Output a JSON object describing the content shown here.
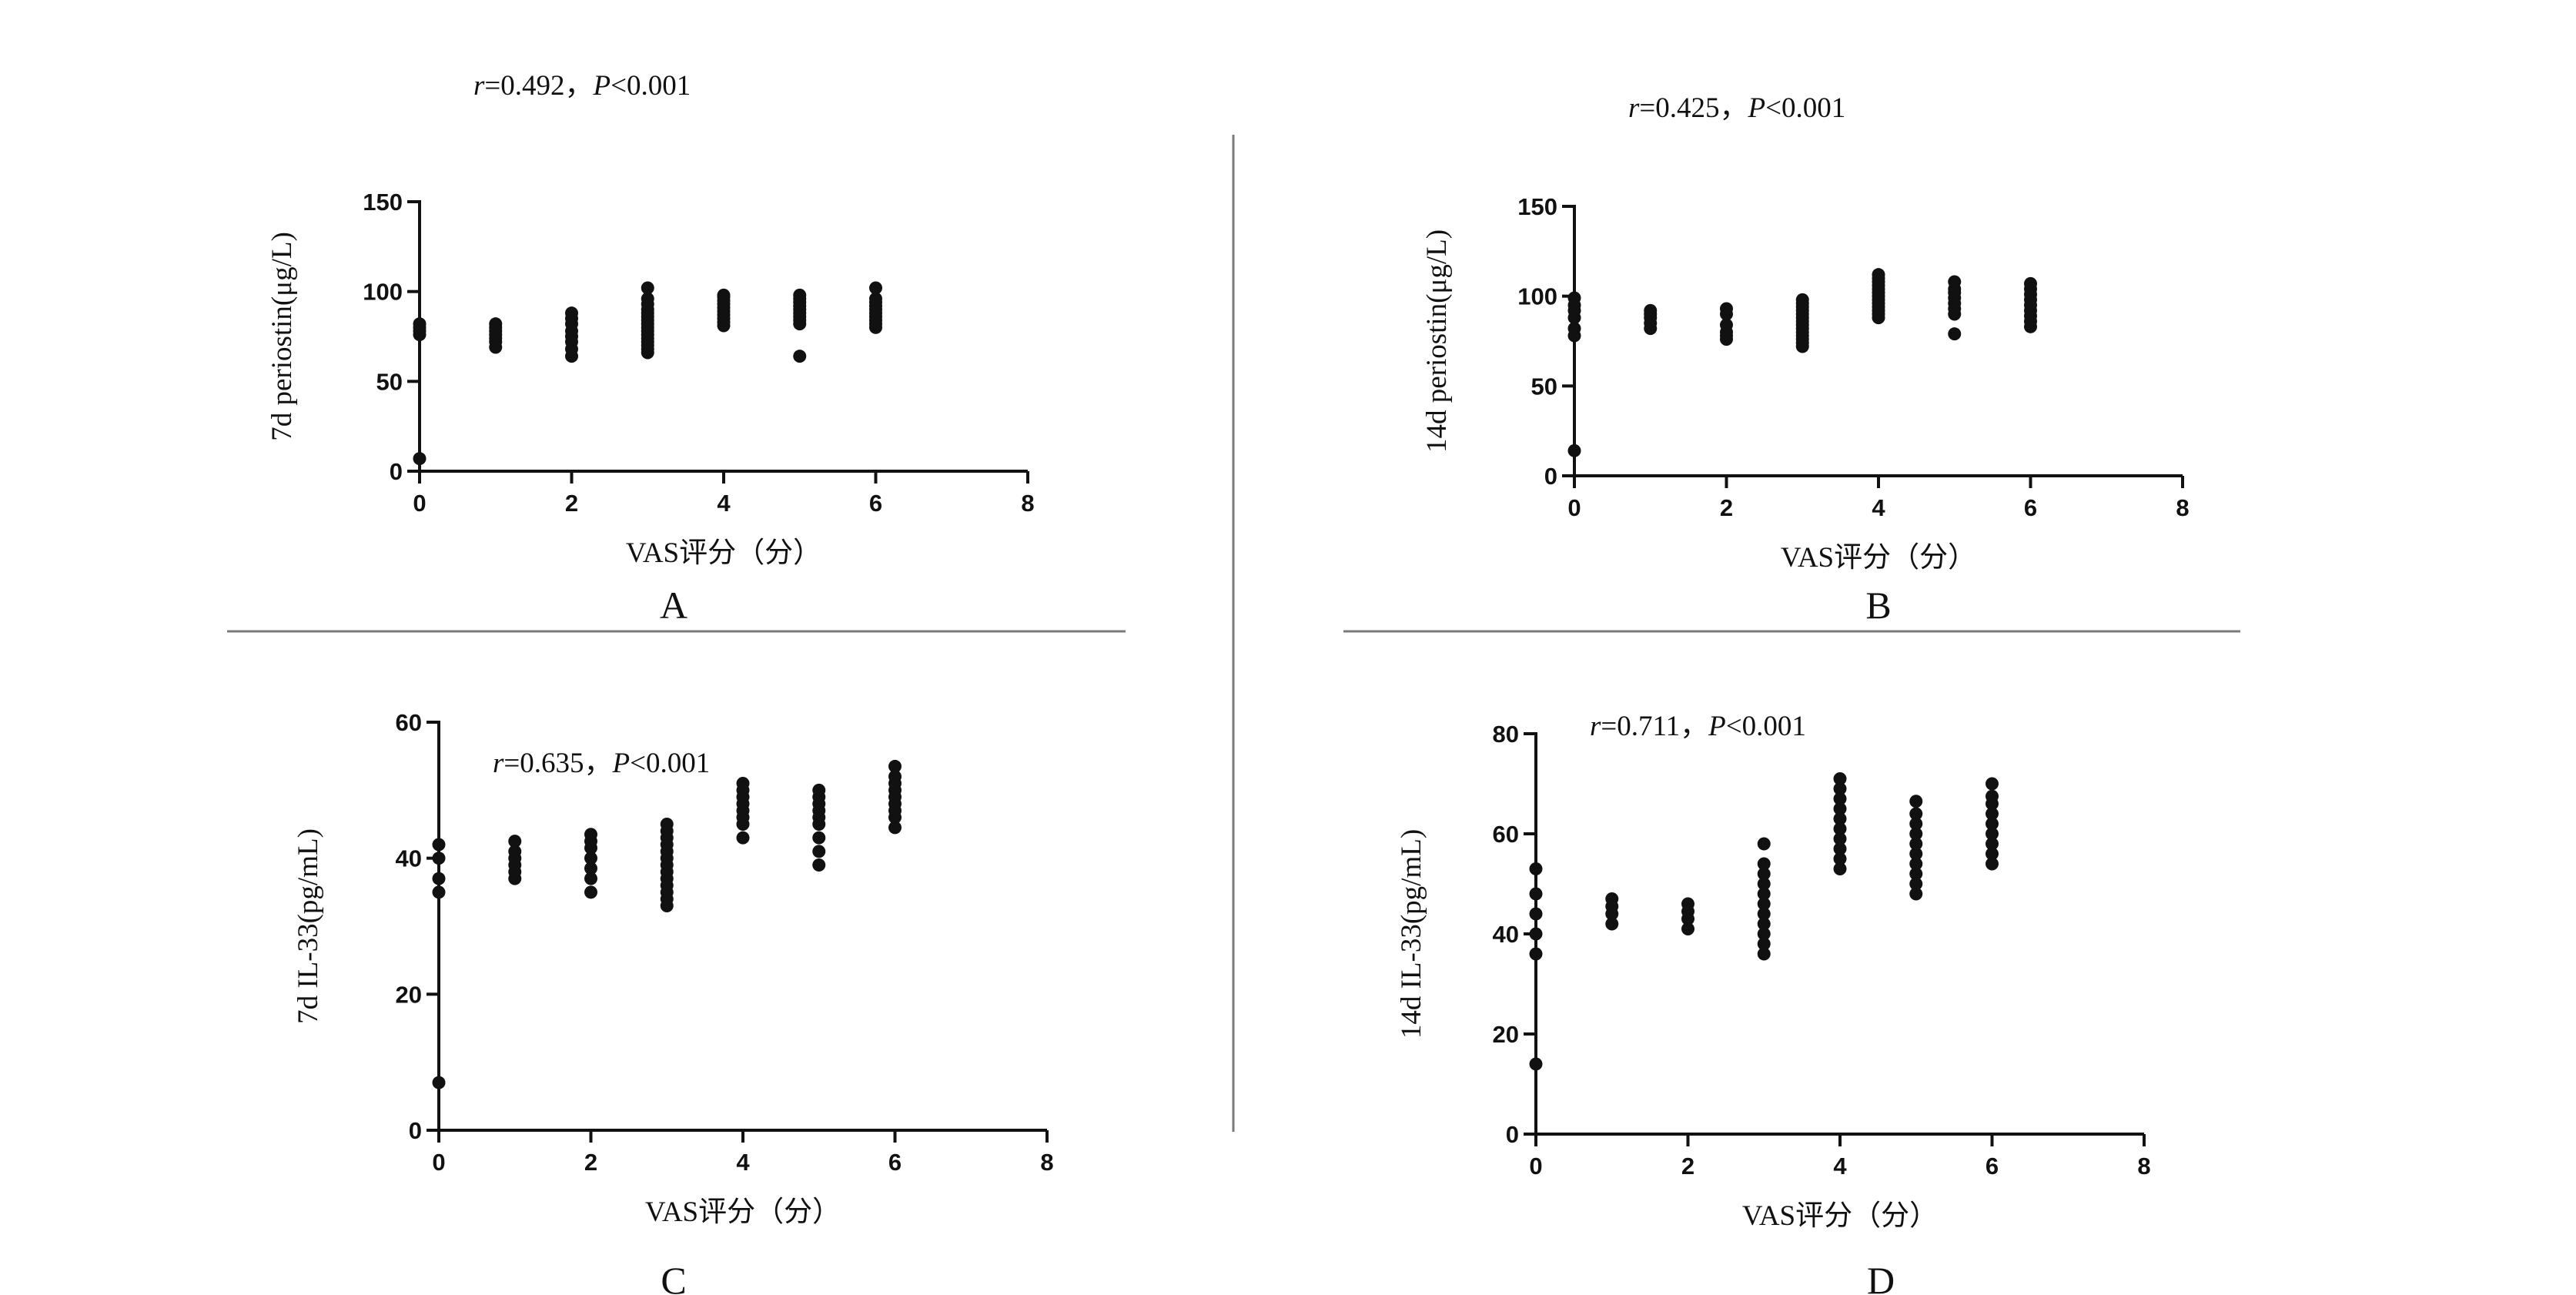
{
  "chart_data": [
    {
      "panel_label": "A",
      "type": "scatter",
      "xlabel": "VAS评分（分）",
      "ylabel": "7d periostin(μg/L)",
      "annotation": {
        "r_symbol": "r",
        "r_text": "=0.492，",
        "p_symbol": "P",
        "p_text": "<0.001"
      },
      "xlim": [
        0,
        8
      ],
      "ylim": [
        0,
        150
      ],
      "xticks": [
        0,
        2,
        4,
        6,
        8
      ],
      "yticks": [
        0,
        50,
        100,
        150
      ],
      "grid": false,
      "points": [
        [
          0,
          7
        ],
        [
          0,
          76
        ],
        [
          0,
          78
        ],
        [
          0,
          80
        ],
        [
          0,
          82
        ],
        [
          1,
          69
        ],
        [
          1,
          72
        ],
        [
          1,
          74
        ],
        [
          1,
          76
        ],
        [
          1,
          78
        ],
        [
          1,
          80
        ],
        [
          1,
          82
        ],
        [
          2,
          64
        ],
        [
          2,
          68
        ],
        [
          2,
          72
        ],
        [
          2,
          75
        ],
        [
          2,
          78
        ],
        [
          2,
          82
        ],
        [
          2,
          85
        ],
        [
          2,
          88
        ],
        [
          3,
          66
        ],
        [
          3,
          68
        ],
        [
          3,
          70
        ],
        [
          3,
          72
        ],
        [
          3,
          74
        ],
        [
          3,
          76
        ],
        [
          3,
          78
        ],
        [
          3,
          80
        ],
        [
          3,
          82
        ],
        [
          3,
          84
        ],
        [
          3,
          86
        ],
        [
          3,
          88
        ],
        [
          3,
          90
        ],
        [
          3,
          93
        ],
        [
          3,
          96
        ],
        [
          3,
          102
        ],
        [
          4,
          81
        ],
        [
          4,
          83
        ],
        [
          4,
          85
        ],
        [
          4,
          87
        ],
        [
          4,
          89
        ],
        [
          4,
          91
        ],
        [
          4,
          93
        ],
        [
          4,
          95
        ],
        [
          4,
          97
        ],
        [
          4,
          98
        ],
        [
          5,
          64
        ],
        [
          5,
          82
        ],
        [
          5,
          84
        ],
        [
          5,
          86
        ],
        [
          5,
          88
        ],
        [
          5,
          90
        ],
        [
          5,
          92
        ],
        [
          5,
          94
        ],
        [
          5,
          96
        ],
        [
          5,
          98
        ],
        [
          6,
          80
        ],
        [
          6,
          82
        ],
        [
          6,
          84
        ],
        [
          6,
          86
        ],
        [
          6,
          88
        ],
        [
          6,
          90
        ],
        [
          6,
          92
        ],
        [
          6,
          94
        ],
        [
          6,
          96
        ],
        [
          6,
          102
        ]
      ]
    },
    {
      "panel_label": "B",
      "type": "scatter",
      "xlabel": "VAS评分（分）",
      "ylabel": "14d periostin(μg/L)",
      "annotation": {
        "r_symbol": "r",
        "r_text": "=0.425，",
        "p_symbol": "P",
        "p_text": "<0.001"
      },
      "xlim": [
        0,
        8
      ],
      "ylim": [
        0,
        150
      ],
      "xticks": [
        0,
        2,
        4,
        6,
        8
      ],
      "yticks": [
        0,
        50,
        100,
        150
      ],
      "grid": false,
      "points": [
        [
          0,
          14
        ],
        [
          0,
          78
        ],
        [
          0,
          82
        ],
        [
          0,
          88
        ],
        [
          0,
          92
        ],
        [
          0,
          95
        ],
        [
          0,
          99
        ],
        [
          1,
          82
        ],
        [
          1,
          85
        ],
        [
          1,
          88
        ],
        [
          1,
          90
        ],
        [
          1,
          92
        ],
        [
          2,
          76
        ],
        [
          2,
          78
        ],
        [
          2,
          80
        ],
        [
          2,
          84
        ],
        [
          2,
          90
        ],
        [
          2,
          93
        ],
        [
          3,
          72
        ],
        [
          3,
          74
        ],
        [
          3,
          76
        ],
        [
          3,
          78
        ],
        [
          3,
          80
        ],
        [
          3,
          82
        ],
        [
          3,
          84
        ],
        [
          3,
          86
        ],
        [
          3,
          88
        ],
        [
          3,
          90
        ],
        [
          3,
          92
        ],
        [
          3,
          94
        ],
        [
          3,
          96
        ],
        [
          3,
          98
        ],
        [
          4,
          88
        ],
        [
          4,
          90
        ],
        [
          4,
          92
        ],
        [
          4,
          94
        ],
        [
          4,
          96
        ],
        [
          4,
          98
        ],
        [
          4,
          100
        ],
        [
          4,
          102
        ],
        [
          4,
          104
        ],
        [
          4,
          106
        ],
        [
          4,
          108
        ],
        [
          4,
          110
        ],
        [
          4,
          112
        ],
        [
          5,
          79
        ],
        [
          5,
          90
        ],
        [
          5,
          93
        ],
        [
          5,
          96
        ],
        [
          5,
          99
        ],
        [
          5,
          102
        ],
        [
          5,
          104
        ],
        [
          5,
          108
        ],
        [
          6,
          83
        ],
        [
          6,
          86
        ],
        [
          6,
          89
        ],
        [
          6,
          92
        ],
        [
          6,
          95
        ],
        [
          6,
          98
        ],
        [
          6,
          101
        ],
        [
          6,
          104
        ],
        [
          6,
          107
        ]
      ]
    },
    {
      "panel_label": "C",
      "type": "scatter",
      "xlabel": "VAS评分（分）",
      "ylabel": "7d IL-33(pg/mL)",
      "annotation": {
        "r_symbol": "r",
        "r_text": "=0.635，",
        "p_symbol": "P",
        "p_text": "<0.001"
      },
      "xlim": [
        0,
        8
      ],
      "ylim": [
        0,
        60
      ],
      "xticks": [
        0,
        2,
        4,
        6,
        8
      ],
      "yticks": [
        0,
        20,
        40,
        60
      ],
      "grid": false,
      "points": [
        [
          0,
          7
        ],
        [
          0,
          35
        ],
        [
          0,
          37
        ],
        [
          0,
          40
        ],
        [
          0,
          42
        ],
        [
          1,
          37
        ],
        [
          1,
          38
        ],
        [
          1,
          39
        ],
        [
          1,
          40
        ],
        [
          1,
          41
        ],
        [
          1,
          42.5
        ],
        [
          2,
          35
        ],
        [
          2,
          37
        ],
        [
          2,
          38.5
        ],
        [
          2,
          40
        ],
        [
          2,
          41.5
        ],
        [
          2,
          42.5
        ],
        [
          2,
          43.5
        ],
        [
          3,
          33
        ],
        [
          3,
          34
        ],
        [
          3,
          35
        ],
        [
          3,
          36
        ],
        [
          3,
          37
        ],
        [
          3,
          38
        ],
        [
          3,
          39
        ],
        [
          3,
          40
        ],
        [
          3,
          41
        ],
        [
          3,
          42
        ],
        [
          3,
          43
        ],
        [
          3,
          44
        ],
        [
          3,
          45
        ],
        [
          4,
          43
        ],
        [
          4,
          45
        ],
        [
          4,
          46
        ],
        [
          4,
          47
        ],
        [
          4,
          48
        ],
        [
          4,
          49
        ],
        [
          4,
          50
        ],
        [
          4,
          51
        ],
        [
          5,
          39
        ],
        [
          5,
          41
        ],
        [
          5,
          43
        ],
        [
          5,
          45
        ],
        [
          5,
          46
        ],
        [
          5,
          47
        ],
        [
          5,
          48
        ],
        [
          5,
          49
        ],
        [
          5,
          50
        ],
        [
          6,
          44.5
        ],
        [
          6,
          46
        ],
        [
          6,
          47
        ],
        [
          6,
          48
        ],
        [
          6,
          49
        ],
        [
          6,
          50
        ],
        [
          6,
          51
        ],
        [
          6,
          52
        ],
        [
          6,
          53.5
        ]
      ]
    },
    {
      "panel_label": "D",
      "type": "scatter",
      "xlabel": "VAS评分（分）",
      "ylabel": "14d IL-33(pg/mL)",
      "annotation": {
        "r_symbol": "r",
        "r_text": "=0.711，",
        "p_symbol": "P",
        "p_text": "<0.001"
      },
      "xlim": [
        0,
        8
      ],
      "ylim": [
        0,
        80
      ],
      "xticks": [
        0,
        2,
        4,
        6,
        8
      ],
      "yticks": [
        0,
        20,
        40,
        60,
        80
      ],
      "grid": false,
      "points": [
        [
          0,
          14
        ],
        [
          0,
          36
        ],
        [
          0,
          40
        ],
        [
          0,
          44
        ],
        [
          0,
          48
        ],
        [
          0,
          53
        ],
        [
          1,
          42
        ],
        [
          1,
          44
        ],
        [
          1,
          45.5
        ],
        [
          1,
          47
        ],
        [
          2,
          41
        ],
        [
          2,
          43
        ],
        [
          2,
          44.5
        ],
        [
          2,
          46
        ],
        [
          3,
          36
        ],
        [
          3,
          38
        ],
        [
          3,
          40
        ],
        [
          3,
          42
        ],
        [
          3,
          44
        ],
        [
          3,
          46
        ],
        [
          3,
          48
        ],
        [
          3,
          50
        ],
        [
          3,
          52
        ],
        [
          3,
          54
        ],
        [
          3,
          58
        ],
        [
          4,
          53
        ],
        [
          4,
          55
        ],
        [
          4,
          57
        ],
        [
          4,
          59
        ],
        [
          4,
          61
        ],
        [
          4,
          63
        ],
        [
          4,
          65
        ],
        [
          4,
          67
        ],
        [
          4,
          69
        ],
        [
          4,
          71
        ],
        [
          5,
          48
        ],
        [
          5,
          50
        ],
        [
          5,
          52
        ],
        [
          5,
          54
        ],
        [
          5,
          56
        ],
        [
          5,
          58
        ],
        [
          5,
          60
        ],
        [
          5,
          62
        ],
        [
          5,
          64
        ],
        [
          5,
          66.5
        ],
        [
          6,
          54
        ],
        [
          6,
          56
        ],
        [
          6,
          58
        ],
        [
          6,
          60
        ],
        [
          6,
          62
        ],
        [
          6,
          64
        ],
        [
          6,
          66
        ],
        [
          6,
          67.5
        ],
        [
          6,
          70
        ]
      ]
    }
  ]
}
